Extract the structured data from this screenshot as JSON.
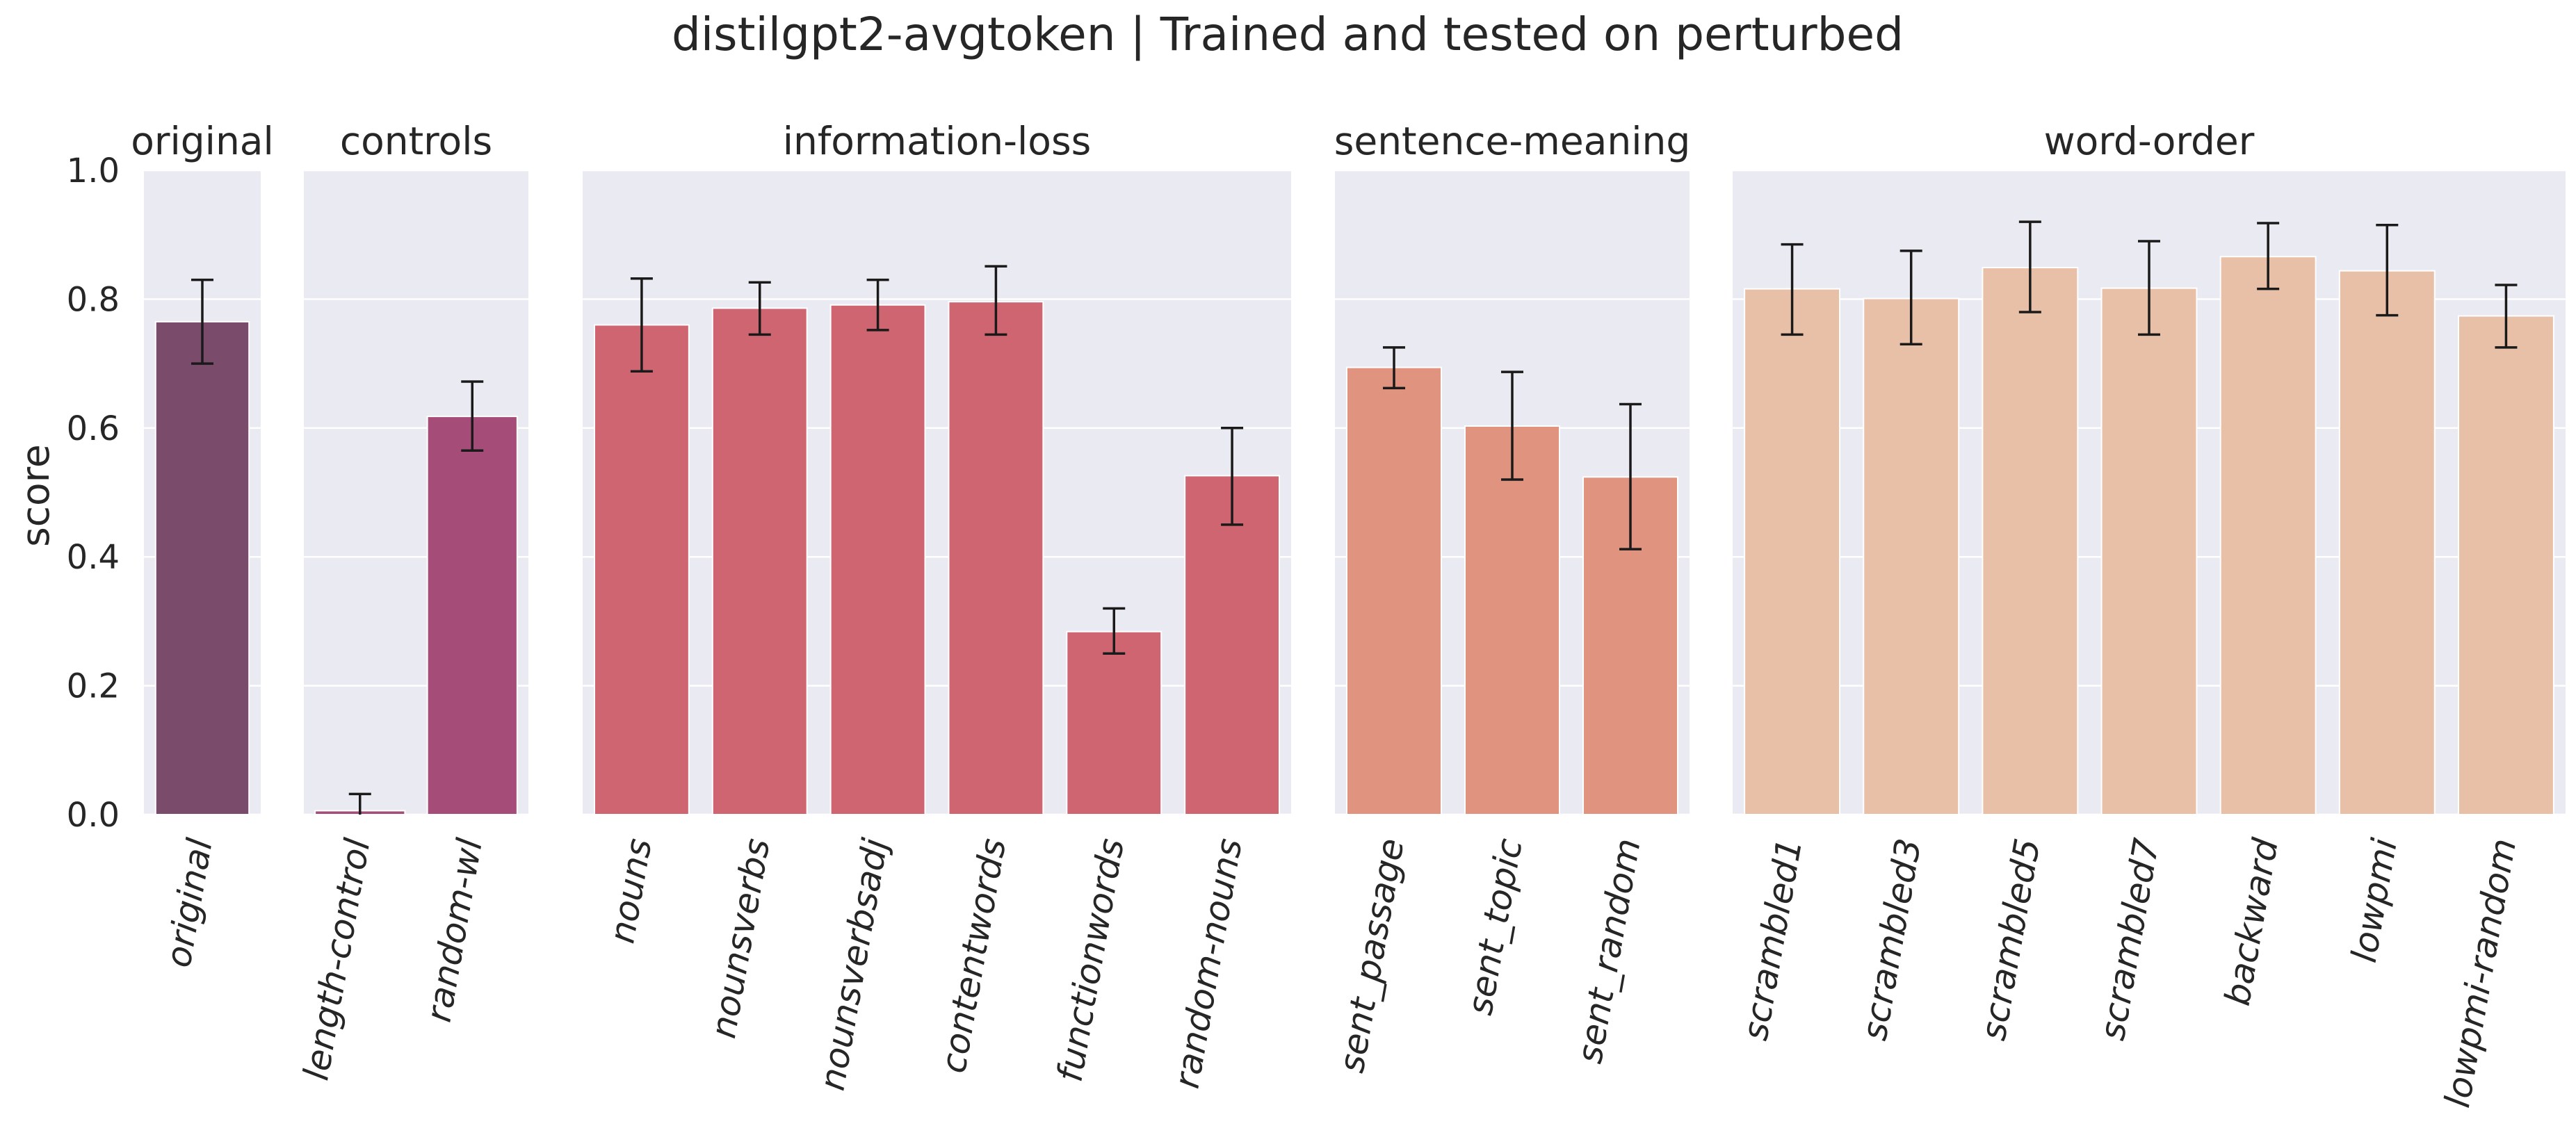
{
  "chart_data": {
    "type": "bar",
    "title": "distilgpt2-avgtoken | Trained and tested on perturbed",
    "ylabel": "score",
    "ylim": [
      0,
      1.0
    ],
    "yticks": [
      "0.0",
      "0.2",
      "0.4",
      "0.6",
      "0.8",
      "1.0"
    ],
    "grid": true,
    "colors": {
      "background": "#eaeaf2",
      "grid": "#ffffff",
      "errorbar": "#1a1a1a",
      "text": "#262626"
    },
    "panels": [
      {
        "title": "original",
        "categories": [
          "original"
        ],
        "values": [
          0.765
        ],
        "errors": [
          [
            0.7,
            0.83
          ]
        ],
        "colors": [
          "#7b4b6c"
        ]
      },
      {
        "title": "controls",
        "categories": [
          "length-control",
          "random-wl"
        ],
        "values": [
          0.006,
          0.618
        ],
        "errors": [
          [
            -0.02,
            0.032
          ],
          [
            0.565,
            0.672
          ]
        ],
        "colors": [
          "#a64c78",
          "#a64c78"
        ]
      },
      {
        "title": "information-loss",
        "categories": [
          "nouns",
          "nounsverbs",
          "nounsverbsadj",
          "contentwords",
          "functionwords",
          "random-nouns"
        ],
        "values": [
          0.76,
          0.786,
          0.791,
          0.796,
          0.284,
          0.526
        ],
        "errors": [
          [
            0.688,
            0.832
          ],
          [
            0.745,
            0.826
          ],
          [
            0.752,
            0.83
          ],
          [
            0.745,
            0.851
          ],
          [
            0.25,
            0.32
          ],
          [
            0.45,
            0.6
          ]
        ],
        "colors": [
          "#d06572",
          "#d06572",
          "#d06572",
          "#d06572",
          "#d06572",
          "#d06572"
        ]
      },
      {
        "title": "sentence-meaning",
        "categories": [
          "sent_passage",
          "sent_topic",
          "sent_random"
        ],
        "values": [
          0.694,
          0.603,
          0.524
        ],
        "errors": [
          [
            0.662,
            0.725
          ],
          [
            0.52,
            0.687
          ],
          [
            0.412,
            0.637
          ]
        ],
        "colors": [
          "#e0937e",
          "#e0937e",
          "#e0937e"
        ]
      },
      {
        "title": "word-order",
        "categories": [
          "scrambled1",
          "scrambled3",
          "scrambled5",
          "scrambled7",
          "backward",
          "lowpmi",
          "lowpmi-random"
        ],
        "values": [
          0.816,
          0.801,
          0.849,
          0.817,
          0.866,
          0.844,
          0.774
        ],
        "errors": [
          [
            0.745,
            0.885
          ],
          [
            0.73,
            0.875
          ],
          [
            0.78,
            0.92
          ],
          [
            0.745,
            0.89
          ],
          [
            0.816,
            0.918
          ],
          [
            0.775,
            0.915
          ],
          [
            0.725,
            0.822
          ]
        ],
        "colors": [
          "#e8c0a7",
          "#e8c0a7",
          "#e8c0a7",
          "#e8c0a7",
          "#e8c0a7",
          "#e8c0a7",
          "#e8c0a7"
        ]
      }
    ]
  }
}
